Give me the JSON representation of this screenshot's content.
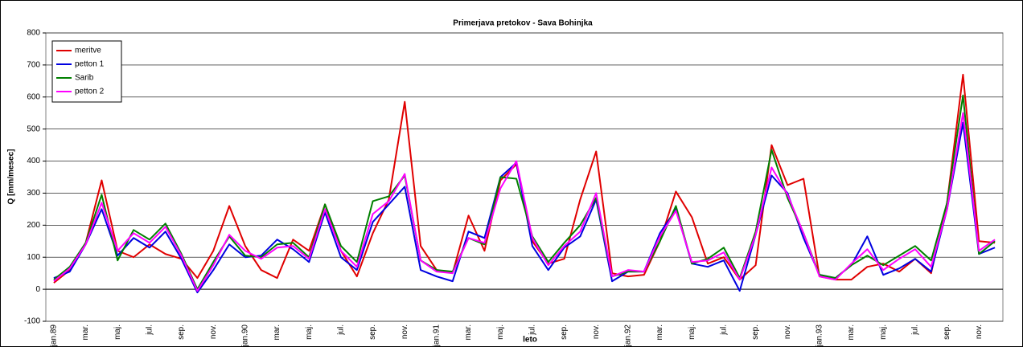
{
  "chart_data": {
    "type": "line",
    "title": "Primerjava pretokov - Sava Bohinjka",
    "xlabel": "leto",
    "ylabel": "Q [mm/mesec]",
    "categories": [
      "jan.89",
      null,
      "mar.",
      null,
      "maj.",
      null,
      "jul.",
      null,
      "sep.",
      null,
      "nov.",
      null,
      "jan.90",
      null,
      "mar.",
      null,
      "maj.",
      null,
      "jul.",
      null,
      "sep.",
      null,
      "nov.",
      null,
      "jan.91",
      null,
      "mar.",
      null,
      "maj.",
      null,
      "jul.",
      null,
      "sep.",
      null,
      "nov.",
      null,
      "jan.92",
      null,
      "mar.",
      null,
      "maj.",
      null,
      "jul.",
      null,
      "sep.",
      null,
      "nov.",
      null,
      "jan.93",
      null,
      "mar.",
      null,
      "maj.",
      null,
      "jul.",
      null,
      "sep.",
      null,
      "nov.",
      null
    ],
    "series": [
      {
        "name": "meritve",
        "color": "#e00000",
        "values": [
          20,
          60,
          145,
          340,
          120,
          100,
          140,
          110,
          95,
          35,
          120,
          260,
          135,
          60,
          35,
          155,
          120,
          265,
          120,
          40,
          175,
          280,
          585,
          135,
          60,
          50,
          230,
          120,
          340,
          390,
          150,
          80,
          95,
          280,
          430,
          50,
          40,
          45,
          150,
          305,
          225,
          80,
          100,
          30,
          75,
          450,
          325,
          345,
          40,
          30,
          30,
          70,
          80,
          55,
          95,
          50,
          270,
          670,
          150,
          145
        ]
      },
      {
        "name": "petton 1",
        "color": "#0000e0",
        "values": [
          35,
          55,
          140,
          250,
          105,
          160,
          130,
          180,
          95,
          -10,
          60,
          140,
          100,
          105,
          155,
          125,
          85,
          240,
          100,
          60,
          210,
          265,
          320,
          60,
          40,
          25,
          180,
          160,
          350,
          395,
          135,
          60,
          130,
          165,
          280,
          25,
          55,
          55,
          175,
          250,
          80,
          70,
          90,
          -5,
          170,
          355,
          300,
          160,
          45,
          35,
          75,
          165,
          45,
          65,
          95,
          55,
          250,
          520,
          110,
          130
        ]
      },
      {
        "name": "Sarib",
        "color": "#008000",
        "values": [
          30,
          70,
          145,
          295,
          90,
          185,
          155,
          205,
          110,
          0,
          85,
          165,
          105,
          100,
          140,
          145,
          100,
          265,
          135,
          85,
          275,
          290,
          355,
          90,
          60,
          55,
          160,
          140,
          350,
          345,
          165,
          85,
          145,
          200,
          285,
          40,
          55,
          55,
          150,
          260,
          80,
          95,
          130,
          35,
          180,
          435,
          285,
          175,
          45,
          35,
          75,
          105,
          75,
          105,
          135,
          90,
          270,
          605,
          110,
          150
        ]
      },
      {
        "name": "petton 2",
        "color": "#ff00ff",
        "values": [
          25,
          65,
          140,
          270,
          120,
          175,
          145,
          195,
          105,
          -5,
          75,
          170,
          120,
          95,
          130,
          135,
          95,
          250,
          120,
          70,
          235,
          275,
          360,
          90,
          55,
          50,
          160,
          145,
          315,
          400,
          160,
          75,
          135,
          180,
          300,
          40,
          60,
          55,
          165,
          245,
          85,
          90,
          115,
          30,
          170,
          380,
          295,
          175,
          40,
          30,
          80,
          125,
          60,
          95,
          125,
          70,
          250,
          550,
          120,
          155
        ]
      }
    ],
    "ylim": [
      -100,
      800
    ],
    "yticks": [
      -100,
      0,
      100,
      200,
      300,
      400,
      500,
      600,
      700,
      800
    ],
    "grid": true,
    "legend": "top-left"
  }
}
